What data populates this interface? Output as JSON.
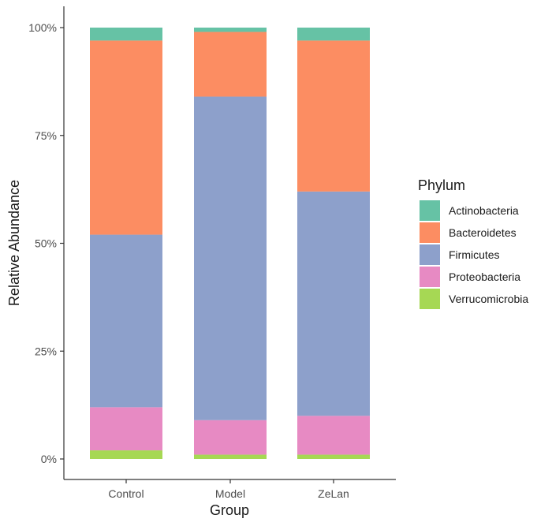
{
  "chart_data": {
    "type": "bar",
    "stacked": true,
    "xlabel": "Group",
    "ylabel": "Relative Abundance",
    "ylim": [
      0,
      100
    ],
    "yticks": [
      "0%",
      "25%",
      "50%",
      "75%",
      "100%"
    ],
    "ytick_values": [
      0,
      25,
      50,
      75,
      100
    ],
    "categories": [
      "Control",
      "Model",
      "ZeLan"
    ],
    "legend": {
      "title": "Phylum",
      "position": "right"
    },
    "grid": false,
    "series": [
      {
        "name": "Verrucomicrobia",
        "color": "#a6d854",
        "values": [
          2,
          1,
          1
        ]
      },
      {
        "name": "Proteobacteria",
        "color": "#e78ac3",
        "values": [
          10,
          8,
          9
        ]
      },
      {
        "name": "Firmicutes",
        "color": "#8da0cb",
        "values": [
          40,
          75,
          52
        ]
      },
      {
        "name": "Bacteroidetes",
        "color": "#fc8d62",
        "values": [
          45,
          15,
          35
        ]
      },
      {
        "name": "Actinobacteria",
        "color": "#66c2a5",
        "values": [
          3,
          1,
          3
        ]
      }
    ],
    "legend_order": [
      "Actinobacteria",
      "Bacteroidetes",
      "Firmicutes",
      "Proteobacteria",
      "Verrucomicrobia"
    ]
  }
}
